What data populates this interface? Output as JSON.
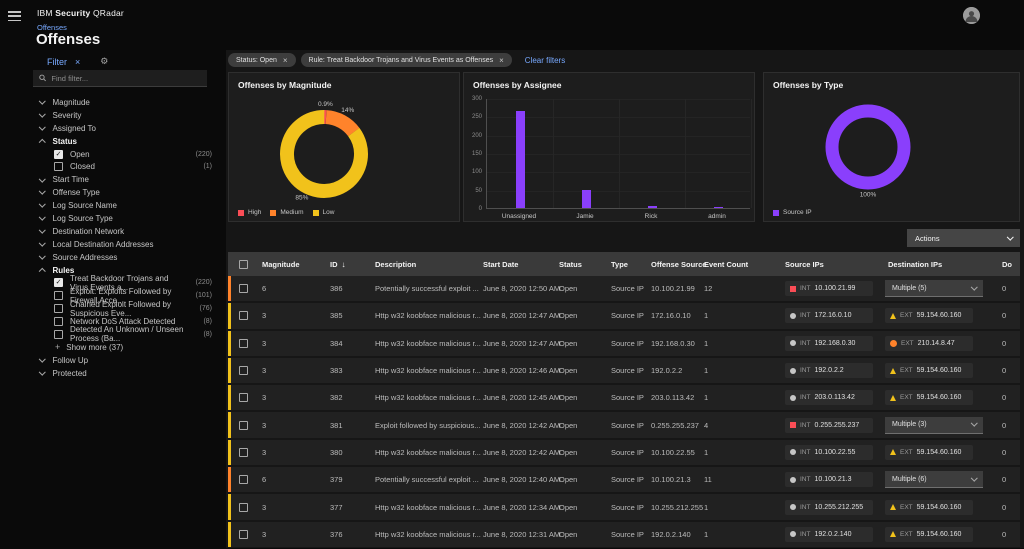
{
  "topbar": {
    "brand": {
      "p1": "IBM",
      "p2": "Security",
      "p3": "QRadar"
    }
  },
  "breadcrumb": "Offenses",
  "page_title": "Offenses",
  "sidebar": {
    "filter_label": "Filter",
    "filter_close": "×",
    "search_placeholder": "Find filter...",
    "groups": [
      {
        "label": "Magnitude"
      },
      {
        "label": "Severity"
      },
      {
        "label": "Assigned To"
      },
      {
        "label": "Status",
        "expanded": true,
        "options": [
          {
            "label": "Open",
            "count": "(220)",
            "checked": true
          },
          {
            "label": "Closed",
            "count": "(1)",
            "checked": false
          }
        ]
      },
      {
        "label": "Start Time"
      },
      {
        "label": "Offense Type"
      },
      {
        "label": "Log Source Name"
      },
      {
        "label": "Log Source Type"
      },
      {
        "label": "Destination Network"
      },
      {
        "label": "Local Destination Addresses"
      },
      {
        "label": "Source Addresses"
      },
      {
        "label": "Rules",
        "expanded": true,
        "options": [
          {
            "label": "Treat Backdoor Trojans and Virus Events a...",
            "count": "(220)",
            "checked": true
          },
          {
            "label": "Exploit: Exploits Followed by Firewall Acce...",
            "count": "(101)",
            "checked": false
          },
          {
            "label": "Chained Exploit Followed by Suspicious Eve...",
            "count": "(76)",
            "checked": false
          },
          {
            "label": "Network DoS Attack Detected",
            "count": "(8)",
            "checked": false
          },
          {
            "label": "Detected An Unknown / Unseen Process (Ba...",
            "count": "(8)",
            "checked": false
          }
        ],
        "show_more": "Show more (37)"
      },
      {
        "label": "Follow Up"
      },
      {
        "label": "Protected"
      }
    ]
  },
  "filter_tags": {
    "tags": [
      {
        "text": "Status: Open"
      },
      {
        "text": "Rule: Treat Backdoor Trojans and Virus Events as Offenses"
      }
    ],
    "clear_label": "Clear filters"
  },
  "chart_data": [
    {
      "type": "donut",
      "title": "Offenses by Magnitude",
      "slices": [
        {
          "label": "High",
          "value": 0.9,
          "display": "0.9%",
          "color": "#fa4d56"
        },
        {
          "label": "Medium",
          "value": 14,
          "display": "14%",
          "color": "#ff832b"
        },
        {
          "label": "Low",
          "value": 85.1,
          "display": "85%",
          "color": "#f1c21b"
        }
      ],
      "legend_position": "bottom"
    },
    {
      "type": "bar",
      "title": "Offenses by Assignee",
      "categories": [
        "Unassigned",
        "Jamie",
        "Rick",
        "admin"
      ],
      "values": [
        265,
        50,
        5,
        1
      ],
      "ylim": [
        0,
        300
      ],
      "yticks": [
        0,
        50,
        100,
        150,
        200,
        250,
        300
      ],
      "bar_color": "#8a3ffc",
      "grid": true
    },
    {
      "type": "donut",
      "title": "Offenses by Type",
      "slices": [
        {
          "label": "Source IP",
          "value": 100,
          "display": "100%",
          "color": "#8a3ffc"
        }
      ],
      "legend_position": "bottom"
    }
  ],
  "table": {
    "actions_label": "Actions",
    "columns": [
      {
        "label": "Magnitude"
      },
      {
        "label": "ID",
        "sorted": "desc"
      },
      {
        "label": "Description"
      },
      {
        "label": "Start Date"
      },
      {
        "label": "Status"
      },
      {
        "label": "Type"
      },
      {
        "label": "Offense Source"
      },
      {
        "label": "Event Count"
      },
      {
        "label": "Source IPs"
      },
      {
        "label": "Destination IPs"
      },
      {
        "label": "Do"
      }
    ],
    "rows": [
      {
        "magnitude": "6",
        "strip": "#ff832b",
        "id": "386",
        "description": "Potentially successful exploit ...",
        "start_date": "June 8, 2020 12:50 AM",
        "status": "Open",
        "type": "Source IP",
        "offense_source": "10.100.21.99",
        "event_count": "12",
        "source_ip": {
          "icon": "red-square-icon",
          "label": "INT",
          "value": "10.100.21.99"
        },
        "destination": {
          "kind": "dropdown",
          "value": "Multiple (5)"
        },
        "last": "0"
      },
      {
        "magnitude": "3",
        "strip": "#f1c21b",
        "id": "385",
        "description": "Http w32 koobface malicious r...",
        "start_date": "June 8, 2020 12:47 AM",
        "status": "Open",
        "type": "Source IP",
        "offense_source": "172.16.0.10",
        "event_count": "1",
        "source_ip": {
          "icon": "gray-dot-icon",
          "label": "INT",
          "value": "172.16.0.10"
        },
        "destination": {
          "kind": "tag",
          "icon": "yellow-warning-icon",
          "label": "EXT",
          "value": "59.154.60.160"
        },
        "last": "0"
      },
      {
        "magnitude": "3",
        "strip": "#f1c21b",
        "id": "384",
        "description": "Http w32 koobface malicious r...",
        "start_date": "June 8, 2020 12:47 AM",
        "status": "Open",
        "type": "Source IP",
        "offense_source": "192.168.0.30",
        "event_count": "1",
        "source_ip": {
          "icon": "gray-dot-icon",
          "label": "INT",
          "value": "192.168.0.30"
        },
        "destination": {
          "kind": "tag",
          "icon": "orange-dot-icon",
          "label": "EXT",
          "value": "210.14.8.47"
        },
        "last": "0"
      },
      {
        "magnitude": "3",
        "strip": "#f1c21b",
        "id": "383",
        "description": "Http w32 koobface malicious r...",
        "start_date": "June 8, 2020 12:46 AM",
        "status": "Open",
        "type": "Source IP",
        "offense_source": "192.0.2.2",
        "event_count": "1",
        "source_ip": {
          "icon": "gray-dot-icon",
          "label": "INT",
          "value": "192.0.2.2"
        },
        "destination": {
          "kind": "tag",
          "icon": "yellow-warning-icon",
          "label": "EXT",
          "value": "59.154.60.160"
        },
        "last": "0"
      },
      {
        "magnitude": "3",
        "strip": "#f1c21b",
        "id": "382",
        "description": "Http w32 koobface malicious r...",
        "start_date": "June 8, 2020 12:45 AM",
        "status": "Open",
        "type": "Source IP",
        "offense_source": "203.0.113.42",
        "event_count": "1",
        "source_ip": {
          "icon": "gray-dot-icon",
          "label": "INT",
          "value": "203.0.113.42"
        },
        "destination": {
          "kind": "tag",
          "icon": "yellow-warning-icon",
          "label": "EXT",
          "value": "59.154.60.160"
        },
        "last": "0"
      },
      {
        "magnitude": "3",
        "strip": "#f1c21b",
        "id": "381",
        "description": "Exploit followed by suspicious...",
        "start_date": "June 8, 2020 12:42 AM",
        "status": "Open",
        "type": "Source IP",
        "offense_source": "0.255.255.237",
        "event_count": "4",
        "source_ip": {
          "icon": "red-square-icon",
          "label": "INT",
          "value": "0.255.255.237"
        },
        "destination": {
          "kind": "dropdown",
          "value": "Multiple (3)"
        },
        "last": "0"
      },
      {
        "magnitude": "3",
        "strip": "#f1c21b",
        "id": "380",
        "description": "Http w32 koobface malicious r...",
        "start_date": "June 8, 2020 12:42 AM",
        "status": "Open",
        "type": "Source IP",
        "offense_source": "10.100.22.55",
        "event_count": "1",
        "source_ip": {
          "icon": "gray-dot-icon",
          "label": "INT",
          "value": "10.100.22.55"
        },
        "destination": {
          "kind": "tag",
          "icon": "yellow-warning-icon",
          "label": "EXT",
          "value": "59.154.60.160"
        },
        "last": "0"
      },
      {
        "magnitude": "6",
        "strip": "#ff832b",
        "id": "379",
        "description": "Potentially successful exploit ...",
        "start_date": "June 8, 2020 12:40 AM",
        "status": "Open",
        "type": "Source IP",
        "offense_source": "10.100.21.3",
        "event_count": "11",
        "source_ip": {
          "icon": "gray-dot-icon",
          "label": "INT",
          "value": "10.100.21.3"
        },
        "destination": {
          "kind": "dropdown",
          "value": "Multiple (6)"
        },
        "last": "0"
      },
      {
        "magnitude": "3",
        "strip": "#f1c21b",
        "id": "377",
        "description": "Http w32 koobface malicious r...",
        "start_date": "June 8, 2020 12:34 AM",
        "status": "Open",
        "type": "Source IP",
        "offense_source": "10.255.212.255",
        "event_count": "1",
        "source_ip": {
          "icon": "gray-dot-icon",
          "label": "INT",
          "value": "10.255.212.255"
        },
        "destination": {
          "kind": "tag",
          "icon": "yellow-warning-icon",
          "label": "EXT",
          "value": "59.154.60.160"
        },
        "last": "0"
      },
      {
        "magnitude": "3",
        "strip": "#f1c21b",
        "id": "376",
        "description": "Http w32 koobface malicious r...",
        "start_date": "June 8, 2020 12:31 AM",
        "status": "Open",
        "type": "Source IP",
        "offense_source": "192.0.2.140",
        "event_count": "1",
        "source_ip": {
          "icon": "gray-dot-icon",
          "label": "INT",
          "value": "192.0.2.140"
        },
        "destination": {
          "kind": "tag",
          "icon": "yellow-warning-icon",
          "label": "EXT",
          "value": "59.154.60.160"
        },
        "last": "0"
      }
    ]
  },
  "colors": {
    "purple": "#8a3ffc",
    "yellow": "#f1c21b",
    "orange": "#ff832b",
    "red": "#fa4d56",
    "link_blue": "#78a9ff",
    "panel": "#1d1d1d",
    "header_row": "#3a3a3a"
  }
}
